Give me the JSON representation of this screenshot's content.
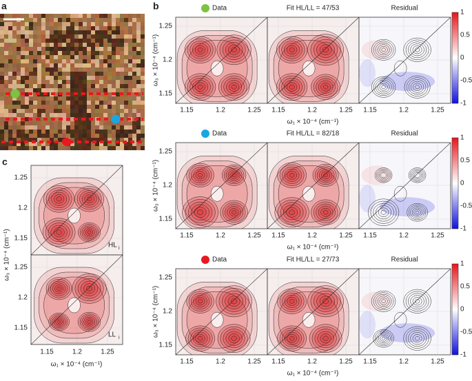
{
  "panel_a": {
    "label": "a"
  },
  "panel_b": {
    "label": "b",
    "rows": [
      {
        "data_label": "Data",
        "fit_label": "Fit HL/LL = 47/53",
        "residual_label": "Residual"
      },
      {
        "data_label": "Data",
        "fit_label": "Fit HL/LL = 82/18",
        "residual_label": "Residual"
      },
      {
        "data_label": "Data",
        "fit_label": "Fit HL/LL = 27/73",
        "residual_label": "Residual"
      }
    ],
    "x_ticks": [
      "1.15",
      "1.2",
      "1.25"
    ],
    "y_ticks": [
      "1.25",
      "1.2",
      "1.15"
    ],
    "x_axis_label": "ω₁ × 10⁻⁴ (cm⁻¹)",
    "y_axis_label": "ω₃ × 10⁻⁴ (cm⁻¹)",
    "colorbar_ticks": [
      "1",
      "0.5",
      "0",
      "-0.5",
      "-1"
    ]
  },
  "panel_c": {
    "label": "c",
    "plot_labels": [
      "HL",
      "LL"
    ],
    "subscript": "i",
    "x_ticks": [
      "1.15",
      "1.2",
      "1.25"
    ],
    "y_ticks": [
      "1.25",
      "1.2",
      "1.15"
    ],
    "x_axis_label": "ω₁ × 10⁻⁴ (cm⁻¹)",
    "y_axis_label": "ω₃ × 10⁻⁴ (cm⁻¹)"
  }
}
